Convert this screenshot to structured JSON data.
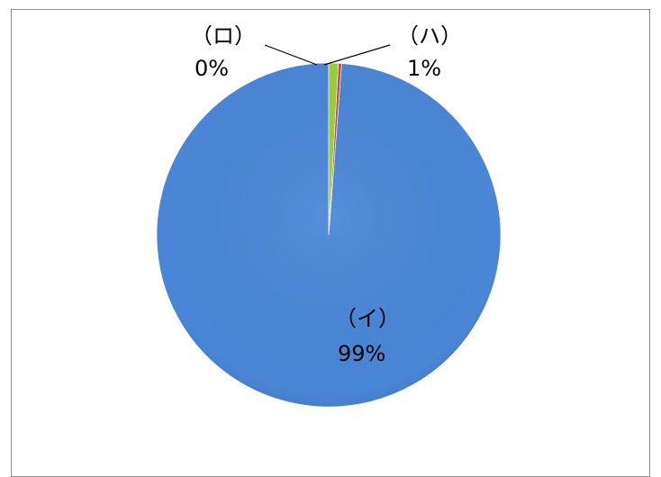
{
  "chart_data": {
    "type": "pie",
    "title": "",
    "slices": [
      {
        "label": "（イ）",
        "value_label": "99%",
        "value": 98.8,
        "color": "#4a86d6"
      },
      {
        "label": "（ロ）",
        "value_label": "0%",
        "value": 0.3,
        "color": "#c0504d"
      },
      {
        "label": "（ハ）",
        "value_label": "1%",
        "value": 0.9,
        "color": "#9bcd3c"
      }
    ],
    "start": "top",
    "direction": "counterclockwise",
    "legend": "none"
  }
}
